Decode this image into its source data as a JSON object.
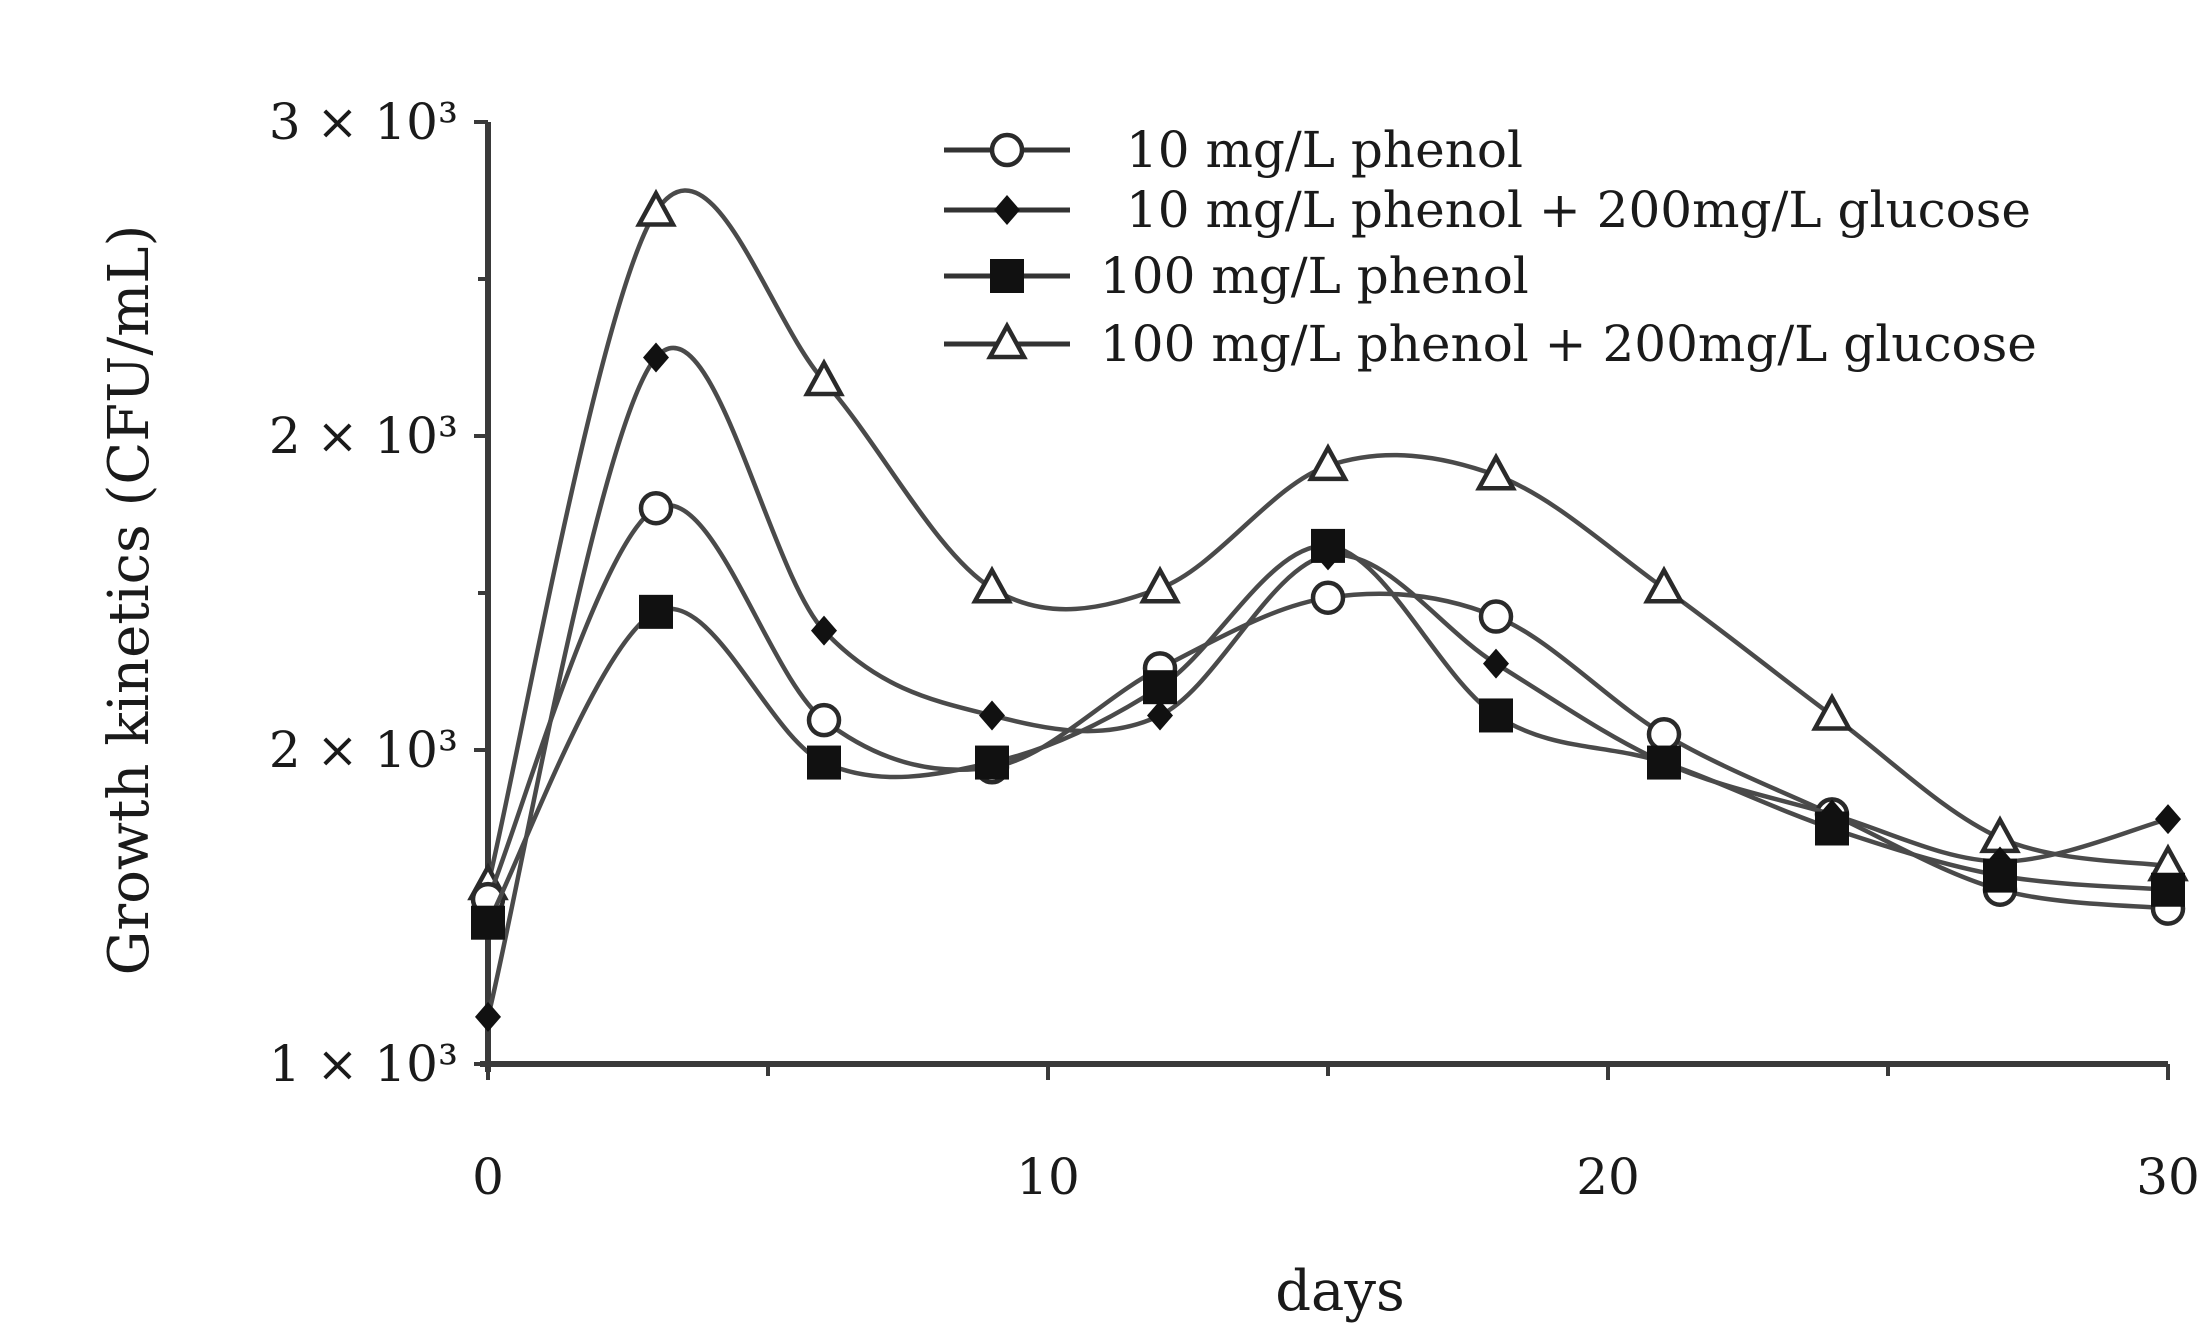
{
  "chart_data": {
    "type": "line",
    "title": "",
    "xlabel": "days",
    "ylabel": "Growth kinetics (CFU/mL)",
    "xlim": [
      0,
      30
    ],
    "ylim": [
      1000,
      3000
    ],
    "x_ticks": [
      0,
      10,
      20,
      30
    ],
    "x_minor_ticks": [
      5,
      15,
      25
    ],
    "y_ticks": [
      {
        "value": 1000,
        "label": "1 × 10³"
      },
      {
        "value": 1666.67,
        "label": "2 × 10³"
      },
      {
        "value": 2333.33,
        "label": "2 × 10³"
      },
      {
        "value": 3000,
        "label": "3 × 10³"
      }
    ],
    "y_minor_ticks": [
      1333.33,
      2000,
      2666.67
    ],
    "grid": false,
    "legend_position": "top-right",
    "x": [
      0,
      3,
      6,
      9,
      12,
      15,
      18,
      21,
      24,
      27,
      30
    ],
    "series": [
      {
        "name": "10 mg/L phenol",
        "marker": "open-circle",
        "values": [
          1350,
          2180,
          1730,
          1630,
          1840,
          1990,
          1950,
          1700,
          1530,
          1370,
          1330
        ]
      },
      {
        "name": "10 mg/L phenol + 200mg/L glucose",
        "marker": "filled-diamond",
        "values": [
          1100,
          2500,
          1920,
          1740,
          1740,
          2080,
          1850,
          1640,
          1530,
          1430,
          1520
        ]
      },
      {
        "name": "100 mg/L phenol",
        "marker": "filled-square",
        "values": [
          1300,
          1960,
          1640,
          1640,
          1800,
          2100,
          1740,
          1640,
          1500,
          1400,
          1370
        ]
      },
      {
        "name": "100 mg/L phenol + 200mg/L glucose",
        "marker": "open-triangle",
        "values": [
          1380,
          2810,
          2450,
          2010,
          2010,
          2270,
          2250,
          2010,
          1740,
          1480,
          1420
        ]
      }
    ]
  }
}
